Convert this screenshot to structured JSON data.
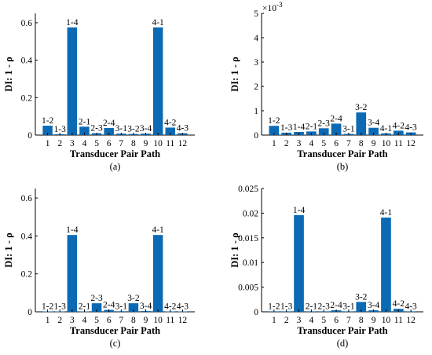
{
  "colors": {
    "bar": "#0b6ab3",
    "axis": "#000000",
    "background": "#ffffff"
  },
  "chart_data": [
    {
      "type": "bar",
      "panel_label": "(a)",
      "xlabel": "Transducer Pair Path",
      "ylabel": "DI: 1 - ρ",
      "categories": [
        "1",
        "2",
        "3",
        "4",
        "5",
        "6",
        "7",
        "8",
        "9",
        "10",
        "11",
        "12"
      ],
      "bar_labels": [
        "1-2",
        "1-3",
        "1-4",
        "2-1",
        "2-3",
        "2-4",
        "3-1",
        "3-2",
        "3-4",
        "4-1",
        "4-2",
        "4-3"
      ],
      "values": [
        0.05,
        0.005,
        0.575,
        0.045,
        0.01,
        0.038,
        0.008,
        0.006,
        0.008,
        0.575,
        0.04,
        0.01
      ],
      "ylim": [
        0,
        0.65
      ],
      "yticks": [
        0,
        0.2,
        0.4,
        0.6
      ],
      "ytick_labels": [
        "0",
        "0.2",
        "0.4",
        "0.6"
      ],
      "exponent_label": "",
      "grid": false,
      "legend": "none"
    },
    {
      "type": "bar",
      "panel_label": "(b)",
      "xlabel": "Transducer Pair Path",
      "ylabel": "DI: 1 - ρ",
      "categories": [
        "1",
        "2",
        "3",
        "4",
        "5",
        "6",
        "7",
        "8",
        "9",
        "10",
        "11",
        "12"
      ],
      "bar_labels": [
        "1-2",
        "1-3",
        "1-4",
        "2-1",
        "2-3",
        "2-4",
        "3-1",
        "3-2",
        "3-4",
        "4-1",
        "4-2",
        "4-3"
      ],
      "values": [
        0.00038,
        0.0001,
        0.00013,
        0.00015,
        0.00028,
        0.00047,
        5e-05,
        0.00093,
        0.0003,
        7e-05,
        0.00018,
        0.00011
      ],
      "ylim": [
        0,
        0.005
      ],
      "yticks": [
        0,
        0.001,
        0.002,
        0.003,
        0.004,
        0.005
      ],
      "ytick_labels": [
        "0",
        "1",
        "2",
        "3",
        "4",
        "5"
      ],
      "exponent_label": "×10",
      "exponent_power": "-3",
      "grid": false,
      "legend": "none"
    },
    {
      "type": "bar",
      "panel_label": "(c)",
      "xlabel": "Transducer Pair Path",
      "ylabel": "DI: 1 - ρ",
      "categories": [
        "1",
        "2",
        "3",
        "4",
        "5",
        "6",
        "7",
        "8",
        "9",
        "10",
        "11",
        "12"
      ],
      "bar_labels": [
        "1-2",
        "1-3",
        "1-4",
        "2-1",
        "2-3",
        "2-4",
        "3-1",
        "3-2",
        "3-4",
        "4-1",
        "4-2",
        "4-3"
      ],
      "values": [
        0.002,
        0.002,
        0.405,
        0.002,
        0.045,
        0.01,
        0.003,
        0.045,
        0.004,
        0.405,
        0.002,
        0.002
      ],
      "ylim": [
        0,
        0.65
      ],
      "yticks": [
        0,
        0.2,
        0.4,
        0.6
      ],
      "ytick_labels": [
        "0",
        "0.2",
        "0.4",
        "0.6"
      ],
      "exponent_label": "",
      "grid": false,
      "legend": "none"
    },
    {
      "type": "bar",
      "panel_label": "(d)",
      "xlabel": "Transducer Pair Path",
      "ylabel": "DI: 1 - ρ",
      "categories": [
        "1",
        "2",
        "3",
        "4",
        "5",
        "6",
        "7",
        "8",
        "9",
        "10",
        "11",
        "12"
      ],
      "bar_labels": [
        "1-2",
        "1-3",
        "1-4",
        "2-1",
        "2-3",
        "2-4",
        "3-1",
        "3-2",
        "3-4",
        "4-1",
        "4-2",
        "4-3"
      ],
      "values": [
        0.0001,
        0.0001,
        0.0196,
        0.0001,
        0.0001,
        0.0003,
        0.0001,
        0.002,
        0.0003,
        0.0191,
        0.0006,
        0.0001
      ],
      "ylim": [
        0,
        0.025
      ],
      "yticks": [
        0,
        0.005,
        0.01,
        0.015,
        0.02,
        0.025
      ],
      "ytick_labels": [
        "0",
        "0.005",
        "0.01",
        "0.015",
        "0.02",
        "0.025"
      ],
      "exponent_label": "",
      "grid": false,
      "legend": "none"
    }
  ]
}
